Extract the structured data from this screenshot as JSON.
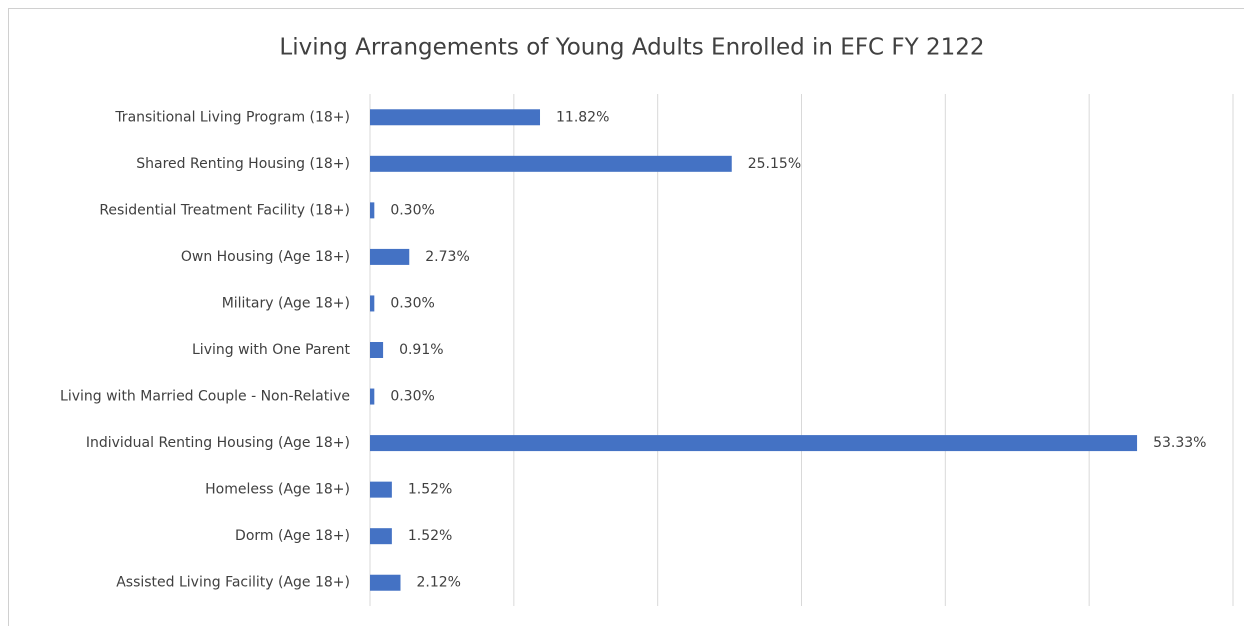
{
  "chart_data": {
    "type": "bar",
    "orientation": "horizontal",
    "title": "Living Arrangements of Young Adults Enrolled in EFC FY 2122",
    "categories": [
      "Transitional Living Program (18+)",
      "Shared Renting Housing (18+)",
      "Residential Treatment Facility (18+)",
      "Own Housing (Age 18+)",
      "Military (Age 18+)",
      "Living with One Parent",
      "Living with Married Couple - Non-Relative",
      "Individual Renting Housing (Age 18+)",
      "Homeless (Age 18+)",
      "Dorm (Age 18+)",
      "Assisted Living Facility (Age 18+)"
    ],
    "values": [
      11.82,
      25.15,
      0.3,
      2.73,
      0.3,
      0.91,
      0.3,
      53.33,
      1.52,
      1.52,
      2.12
    ],
    "value_labels": [
      "11.82%",
      "25.15%",
      "0.30%",
      "2.73%",
      "0.30%",
      "0.91%",
      "0.30%",
      "53.33%",
      "1.52%",
      "1.52%",
      "2.12%"
    ],
    "color": "#4472c4",
    "xlim": [
      0,
      60
    ],
    "xticks": [
      0,
      10,
      20,
      30,
      40,
      50,
      60
    ],
    "grid": true
  }
}
